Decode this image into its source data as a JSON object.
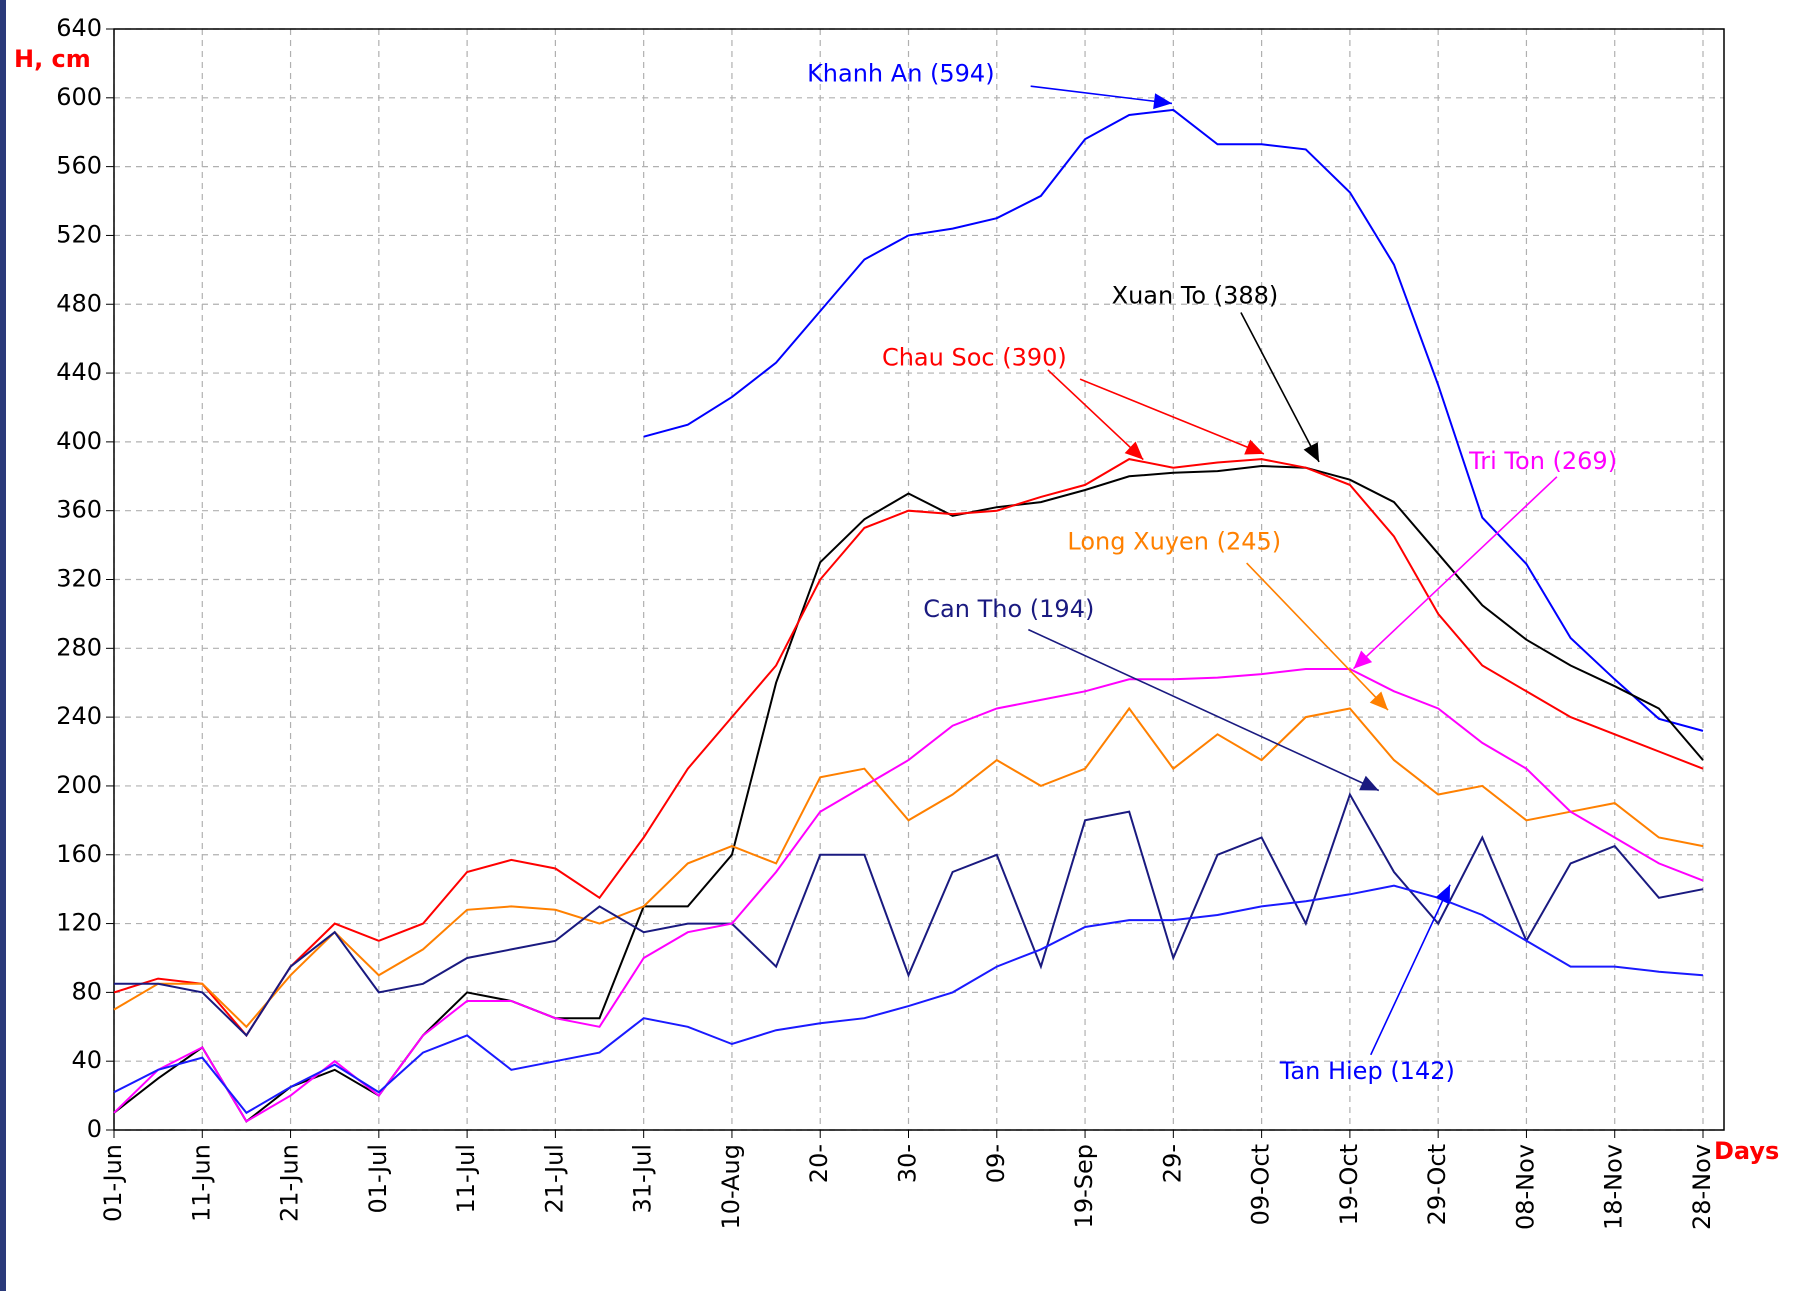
{
  "chart_data": {
    "type": "line",
    "y_label": "H, cm",
    "x_label": "Days",
    "categories": [
      "01-Jun",
      null,
      "11-Jun",
      null,
      "21-Jun",
      null,
      "01-Jul",
      null,
      "11-Jul",
      null,
      "21-Jul",
      null,
      "31-Jul",
      null,
      "10-Aug",
      null,
      "20-",
      null,
      "30-",
      null,
      "09-",
      null,
      "19-Sep",
      null,
      "29-",
      null,
      "09-Oct",
      null,
      "19-Oct",
      null,
      "29-Oct",
      null,
      "08-Nov",
      null,
      "18-Nov",
      null,
      "28-Nov"
    ],
    "ylim": [
      0,
      640
    ],
    "yticks": [
      0,
      40,
      80,
      120,
      160,
      200,
      240,
      280,
      320,
      360,
      400,
      440,
      480,
      520,
      560,
      600,
      640
    ],
    "grid": true,
    "series": [
      {
        "name": "Khanh An",
        "color": "#0000ff",
        "values": [
          null,
          null,
          null,
          null,
          null,
          null,
          null,
          null,
          null,
          null,
          null,
          null,
          403,
          410,
          426,
          446,
          476,
          506,
          520,
          524,
          530,
          543,
          576,
          590,
          593,
          573,
          573,
          570,
          545,
          503,
          433,
          356,
          329,
          286,
          262,
          239,
          232
        ]
      },
      {
        "name": "Xuan To",
        "color": "#000000",
        "values": [
          10,
          30,
          48,
          5,
          25,
          35,
          20,
          55,
          80,
          75,
          65,
          65,
          130,
          130,
          160,
          260,
          330,
          355,
          370,
          357,
          362,
          365,
          372,
          380,
          382,
          383,
          386,
          385,
          378,
          365,
          335,
          305,
          285,
          270,
          258,
          245,
          215
        ]
      },
      {
        "name": "Chau Soc",
        "color": "#ff0000",
        "values": [
          80,
          88,
          85,
          55,
          95,
          120,
          110,
          120,
          150,
          157,
          152,
          135,
          170,
          210,
          240,
          270,
          320,
          350,
          360,
          358,
          360,
          368,
          375,
          390,
          385,
          388,
          390,
          385,
          375,
          345,
          300,
          270,
          255,
          240,
          230,
          220,
          210
        ]
      },
      {
        "name": "Long Xuyen",
        "color": "#ff8000",
        "values": [
          70,
          85,
          85,
          60,
          90,
          115,
          90,
          105,
          128,
          130,
          128,
          120,
          130,
          155,
          165,
          155,
          205,
          210,
          180,
          195,
          215,
          200,
          210,
          245,
          210,
          230,
          215,
          240,
          245,
          215,
          195,
          200,
          180,
          185,
          190,
          170,
          165
        ]
      },
      {
        "name": "Can Tho",
        "color": "#1a1a80",
        "values": [
          85,
          85,
          80,
          55,
          95,
          115,
          80,
          85,
          100,
          105,
          110,
          130,
          115,
          120,
          120,
          95,
          160,
          160,
          90,
          150,
          160,
          95,
          180,
          185,
          100,
          160,
          170,
          120,
          195,
          150,
          120,
          170,
          110,
          155,
          165,
          135,
          140
        ]
      },
      {
        "name": "Tri Ton",
        "color": "#ff00ff",
        "values": [
          10,
          35,
          48,
          5,
          20,
          40,
          20,
          55,
          75,
          75,
          65,
          60,
          100,
          115,
          120,
          150,
          185,
          200,
          215,
          235,
          245,
          250,
          255,
          262,
          262,
          263,
          265,
          268,
          268,
          255,
          245,
          225,
          210,
          185,
          170,
          155,
          145
        ]
      },
      {
        "name": "Tan Hiep",
        "color": "#1a1aff",
        "values": [
          22,
          35,
          42,
          10,
          25,
          38,
          22,
          45,
          55,
          35,
          40,
          45,
          65,
          60,
          50,
          58,
          62,
          65,
          72,
          80,
          95,
          105,
          118,
          122,
          122,
          125,
          130,
          133,
          137,
          142,
          135,
          125,
          110,
          95,
          95,
          92,
          90
        ]
      }
    ],
    "annotations": [
      {
        "text": "Khanh An (594)",
        "color": "#0000ff"
      },
      {
        "text": "Xuan To (388)",
        "color": "#000000"
      },
      {
        "text": "Chau Soc (390)",
        "color": "#ff0000"
      },
      {
        "text": "Tri Ton (269)",
        "color": "#ff00ff"
      },
      {
        "text": "Long Xuyen (245)",
        "color": "#ff8000"
      },
      {
        "text": "Can Tho (194)",
        "color": "#1a1a80"
      },
      {
        "text": "Tan Hiep (142)",
        "color": "#0000ff"
      }
    ]
  }
}
